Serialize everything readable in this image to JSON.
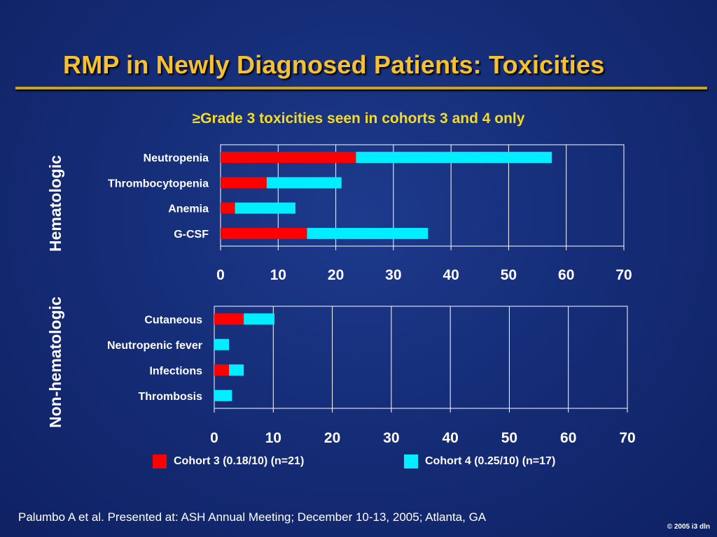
{
  "slide": {
    "title": "RMP in Newly Diagnosed Patients: Toxicities",
    "subtitle": "≥Grade 3 toxicities seen in cohorts 3 and 4 only",
    "footer": "Palumbo A et al. Presented at: ASH Annual Meeting; December 10-13, 2005; Atlanta, GA",
    "copyright": "© 2005 i3 dln"
  },
  "colors": {
    "title": "#f6c02e",
    "subtitle": "#f6dc1f",
    "cohort3": "#ff0000",
    "cohort4": "#00eeff",
    "background": "#142b74"
  },
  "legend": [
    {
      "label": "Cohort 3 (0.18/10) (n=21)",
      "color": "#ff0000"
    },
    {
      "label": "Cohort 4 (0.25/10) (n=17)",
      "color": "#00eeff"
    }
  ],
  "chart_data": [
    {
      "type": "bar",
      "orientation": "horizontal",
      "stacked": true,
      "panel_label": "Hematologic",
      "categories": [
        "Neutropenia",
        "Thrombocytopenia",
        "Anemia",
        "G-CSF"
      ],
      "series": [
        {
          "name": "Cohort 3 (0.18/10) (n=21)",
          "values": [
            23.5,
            8,
            2.5,
            15
          ]
        },
        {
          "name": "Cohort 4 (0.25/10) (n=17)",
          "values": [
            34,
            13,
            10.5,
            21
          ]
        }
      ],
      "xlim": [
        0,
        70
      ],
      "xticks": [
        0,
        10,
        20,
        30,
        40,
        50,
        60,
        70
      ],
      "grid": "vertical"
    },
    {
      "type": "bar",
      "orientation": "horizontal",
      "stacked": true,
      "panel_label": "Non-hematologic",
      "categories": [
        "Cutaneous",
        "Neutropenic fever",
        "Infections",
        "Thrombosis"
      ],
      "series": [
        {
          "name": "Cohort 3 (0.18/10) (n=21)",
          "values": [
            5,
            0,
            2.5,
            0
          ]
        },
        {
          "name": "Cohort 4 (0.25/10) (n=17)",
          "values": [
            5.2,
            2.5,
            2.5,
            3
          ]
        }
      ],
      "xlim": [
        0,
        70
      ],
      "xticks": [
        0,
        10,
        20,
        30,
        40,
        50,
        60,
        70
      ],
      "grid": "vertical"
    }
  ]
}
